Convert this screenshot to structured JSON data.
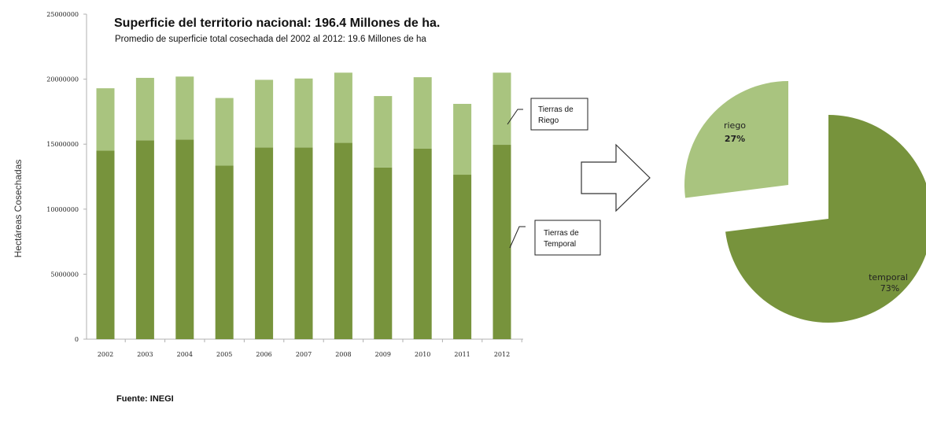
{
  "chart_data": [
    {
      "type": "bar",
      "stacked": true,
      "title": "Superficie del territorio nacional: 196.4 Millones de ha.",
      "subtitle": "Promedio de superficie total cosechada del 2002 al 2012: 19.6 Millones de ha",
      "ylabel": "Hectáreas Cosechadas",
      "xlabel": "",
      "ylim": [
        0,
        25000000
      ],
      "yticks": [
        0,
        5000000,
        10000000,
        15000000,
        20000000,
        25000000
      ],
      "yticklabels": [
        "0",
        "5000000",
        "10000000",
        "15000000",
        "20000000",
        "25000000"
      ],
      "categories": [
        "2002",
        "2003",
        "2004",
        "2005",
        "2006",
        "2007",
        "2008",
        "2009",
        "2010",
        "2011",
        "2012"
      ],
      "series": [
        {
          "name": "Tierras de Temporal",
          "color": "#77933c",
          "values": [
            14500000,
            15300000,
            15350000,
            13350000,
            14750000,
            14750000,
            15100000,
            13200000,
            14650000,
            12650000,
            14950000
          ]
        },
        {
          "name": "Tierras de Riego",
          "color": "#a9c47f",
          "values": [
            4800000,
            4800000,
            4850000,
            5200000,
            5200000,
            5300000,
            5400000,
            5500000,
            5500000,
            5450000,
            5550000
          ]
        }
      ],
      "callouts": [
        {
          "series": "Tierras de Riego",
          "lines": [
            "Tierras de",
            "Riego"
          ]
        },
        {
          "series": "Tierras de Temporal",
          "lines": [
            "Tierras de",
            "Temporal"
          ]
        }
      ],
      "grid": false,
      "legend": "callouts-right"
    },
    {
      "type": "pie",
      "exploded": true,
      "slices": [
        {
          "label": "riego",
          "percent_label": "27%",
          "value": 27,
          "color": "#a9c47f"
        },
        {
          "label": "temporal",
          "percent_label": "73%",
          "value": 73,
          "color": "#77933c"
        }
      ]
    }
  ],
  "source": "Fuente: INEGI",
  "arrow_icon": "right-arrow-icon"
}
